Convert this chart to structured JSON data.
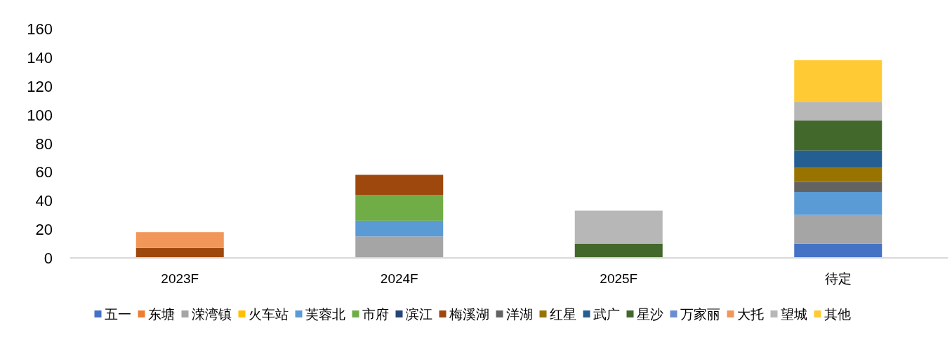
{
  "chart_data": {
    "type": "bar",
    "stacked": true,
    "categories": [
      "2023F",
      "2024F",
      "2025F",
      "待定"
    ],
    "ylim": [
      0,
      160
    ],
    "yticks": [
      0,
      20,
      40,
      60,
      80,
      100,
      120,
      140,
      160
    ],
    "grid": false,
    "legend": "bottom",
    "series": [
      {
        "name": "五一",
        "color": "#4472c4",
        "values": [
          null,
          null,
          null,
          10
        ]
      },
      {
        "name": "东塘",
        "color": "#ed7d31",
        "values": [
          null,
          null,
          null,
          null
        ]
      },
      {
        "name": "溁湾镇",
        "color": "#a5a5a5",
        "values": [
          null,
          15,
          null,
          20
        ]
      },
      {
        "name": "火车站",
        "color": "#ffc000",
        "values": [
          null,
          null,
          null,
          null
        ]
      },
      {
        "name": "芙蓉北",
        "color": "#5b9bd5",
        "values": [
          null,
          11,
          null,
          16
        ]
      },
      {
        "name": "市府",
        "color": "#70ad47",
        "values": [
          null,
          18,
          null,
          null
        ]
      },
      {
        "name": "滨江",
        "color": "#264478",
        "values": [
          null,
          null,
          null,
          null
        ]
      },
      {
        "name": "梅溪湖",
        "color": "#9e480e",
        "values": [
          7,
          14,
          null,
          null
        ]
      },
      {
        "name": "洋湖",
        "color": "#636363",
        "values": [
          null,
          null,
          null,
          7
        ]
      },
      {
        "name": "红星",
        "color": "#997300",
        "values": [
          null,
          null,
          null,
          10
        ]
      },
      {
        "name": "武广",
        "color": "#255e91",
        "values": [
          null,
          null,
          null,
          12
        ]
      },
      {
        "name": "星沙",
        "color": "#43682b",
        "values": [
          null,
          null,
          10,
          21
        ]
      },
      {
        "name": "万家丽",
        "color": "#698ed0",
        "values": [
          null,
          null,
          null,
          null
        ]
      },
      {
        "name": "大托",
        "color": "#f1975a",
        "values": [
          11,
          null,
          null,
          null
        ]
      },
      {
        "name": "望城",
        "color": "#b7b7b7",
        "values": [
          null,
          null,
          23,
          13
        ]
      },
      {
        "name": "其他",
        "color": "#ffca33",
        "values": [
          null,
          null,
          null,
          29
        ]
      }
    ]
  }
}
